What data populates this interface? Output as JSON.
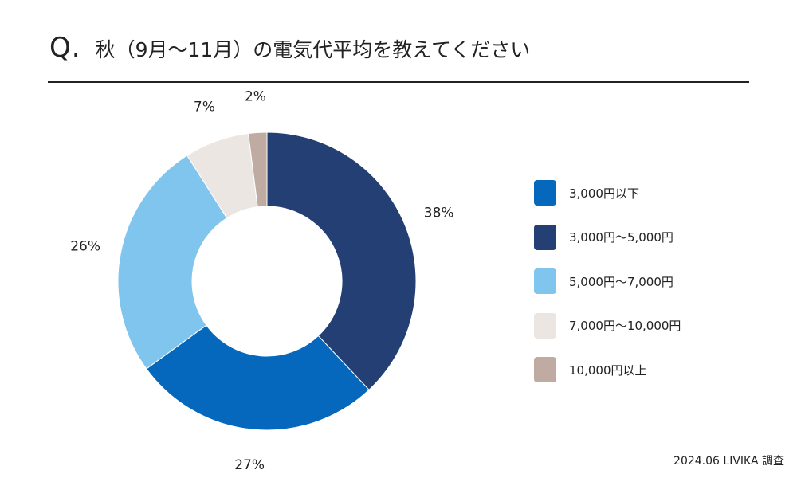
{
  "header": {
    "q_mark": "Q.",
    "title": "秋（9月〜11月）の電気代平均を教えてください"
  },
  "chart_data": {
    "type": "pie",
    "style": "donut",
    "title": "秋（9月〜11月）の電気代平均を教えてください",
    "categories": [
      "3,000円以下",
      "3,000円〜5,000円",
      "5,000円〜7,000円",
      "7,000円〜10,000円",
      "10,000円以上"
    ],
    "values": [
      27,
      38,
      26,
      7,
      2
    ],
    "value_labels": [
      "27%",
      "38%",
      "26%",
      "7%",
      "2%"
    ],
    "colors": [
      "#0568bd",
      "#233f73",
      "#7fc5ed",
      "#ebe6e2",
      "#bfaba2"
    ],
    "draw_order": [
      1,
      0,
      2,
      3,
      4
    ],
    "legend_position": "right"
  },
  "footer": {
    "source": "2024.06 LIVIKA 調査"
  }
}
